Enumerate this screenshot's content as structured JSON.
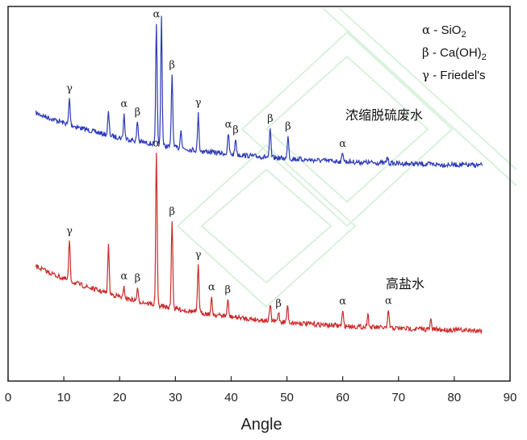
{
  "chart_data": {
    "type": "line",
    "title": "",
    "xlabel": "Angle",
    "ylabel": "",
    "xlim": [
      0,
      90
    ],
    "xticks": [
      "0",
      "10",
      "20",
      "30",
      "40",
      "50",
      "60",
      "70",
      "80",
      "90"
    ],
    "legend_position": "top-right",
    "legend": [
      {
        "symbol": "α",
        "text": " - SiO",
        "sub": "2"
      },
      {
        "symbol": "β",
        "text": " - Ca(OH)",
        "sub": "2"
      },
      {
        "symbol": "γ",
        "text": " - Friedel's",
        "sub": ""
      }
    ],
    "series": [
      {
        "name": "浓缩脱硫废水",
        "color": "#2b39b8",
        "baseline": 150,
        "decay": 0.9,
        "peaks": [
          {
            "x": 11.0,
            "h": 32,
            "label": "γ"
          },
          {
            "x": 18.0,
            "h": 28,
            "label": ""
          },
          {
            "x": 20.8,
            "h": 30,
            "label": "α"
          },
          {
            "x": 23.2,
            "h": 25,
            "label": "β"
          },
          {
            "x": 26.6,
            "h": 150,
            "label": "α"
          },
          {
            "x": 27.5,
            "h": 160,
            "label": ""
          },
          {
            "x": 29.4,
            "h": 90,
            "label": "β"
          },
          {
            "x": 31.0,
            "h": 25,
            "label": ""
          },
          {
            "x": 34.1,
            "h": 45,
            "label": "γ"
          },
          {
            "x": 39.5,
            "h": 25,
            "label": "α"
          },
          {
            "x": 40.8,
            "h": 20,
            "label": "β"
          },
          {
            "x": 47.0,
            "h": 35,
            "label": "β"
          },
          {
            "x": 50.2,
            "h": 30,
            "label": "β"
          },
          {
            "x": 60.0,
            "h": 12,
            "label": "α"
          },
          {
            "x": 68.0,
            "h": 8,
            "label": ""
          }
        ]
      },
      {
        "name": "高盐水",
        "color": "#cc2a2a",
        "baseline": 100,
        "decay": 0.9,
        "peaks": [
          {
            "x": 11.0,
            "h": 50,
            "label": "γ"
          },
          {
            "x": 18.0,
            "h": 60,
            "label": ""
          },
          {
            "x": 20.8,
            "h": 12,
            "label": "α"
          },
          {
            "x": 23.2,
            "h": 15,
            "label": "β"
          },
          {
            "x": 26.6,
            "h": 190,
            "label": "α"
          },
          {
            "x": 29.4,
            "h": 110,
            "label": "β"
          },
          {
            "x": 34.1,
            "h": 60,
            "label": "γ"
          },
          {
            "x": 36.5,
            "h": 20,
            "label": "α"
          },
          {
            "x": 39.4,
            "h": 20,
            "label": "β"
          },
          {
            "x": 47.0,
            "h": 20,
            "label": ""
          },
          {
            "x": 48.5,
            "h": 12,
            "label": "β"
          },
          {
            "x": 50.1,
            "h": 22,
            "label": ""
          },
          {
            "x": 60.0,
            "h": 18,
            "label": "α"
          },
          {
            "x": 64.5,
            "h": 18,
            "label": ""
          },
          {
            "x": 68.2,
            "h": 22,
            "label": "α"
          },
          {
            "x": 75.8,
            "h": 12,
            "label": ""
          }
        ]
      }
    ]
  }
}
